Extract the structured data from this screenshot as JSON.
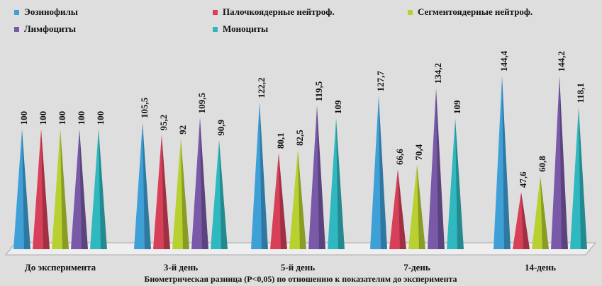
{
  "chart_data": {
    "type": "pyramid",
    "categories": [
      "До эксперимента",
      "3-й день",
      "5-й день",
      "7-день",
      "14-день"
    ],
    "series": [
      {
        "name": "Эозинофилы",
        "color": "#3fa0d8",
        "values": [
          100,
          105.5,
          122.2,
          127.7,
          144.4
        ],
        "value_labels": [
          "100",
          "105,5",
          "122,2",
          "127,7",
          "144,4"
        ]
      },
      {
        "name": "Палочкоядерные нейтроф.",
        "color": "#d8405a",
        "values": [
          100,
          95.2,
          80.1,
          66.6,
          47.6
        ],
        "value_labels": [
          "100",
          "95,2",
          "80,1",
          "66,6",
          "47,6"
        ]
      },
      {
        "name": "Сегментоядерные нейтроф.",
        "color": "#b8d030",
        "values": [
          100,
          92,
          82.5,
          70.4,
          60.8
        ],
        "value_labels": [
          "100",
          "92",
          "82,5",
          "70,4",
          "60,8"
        ]
      },
      {
        "name": "Лимфоциты",
        "color": "#7a5aa8",
        "values": [
          100,
          109.5,
          119.5,
          134.2,
          144.2
        ],
        "value_labels": [
          "100",
          "109,5",
          "119,5",
          "134,2",
          "144,2"
        ]
      },
      {
        "name": "Моноциты",
        "color": "#30b8c0",
        "values": [
          100,
          90.9,
          109,
          109,
          118.1
        ],
        "value_labels": [
          "100",
          "90,9",
          "109",
          "109",
          "118,1"
        ]
      }
    ],
    "caption": "Биометрическая разница (P<0,05) по отношению к показателям до эксперимента"
  }
}
